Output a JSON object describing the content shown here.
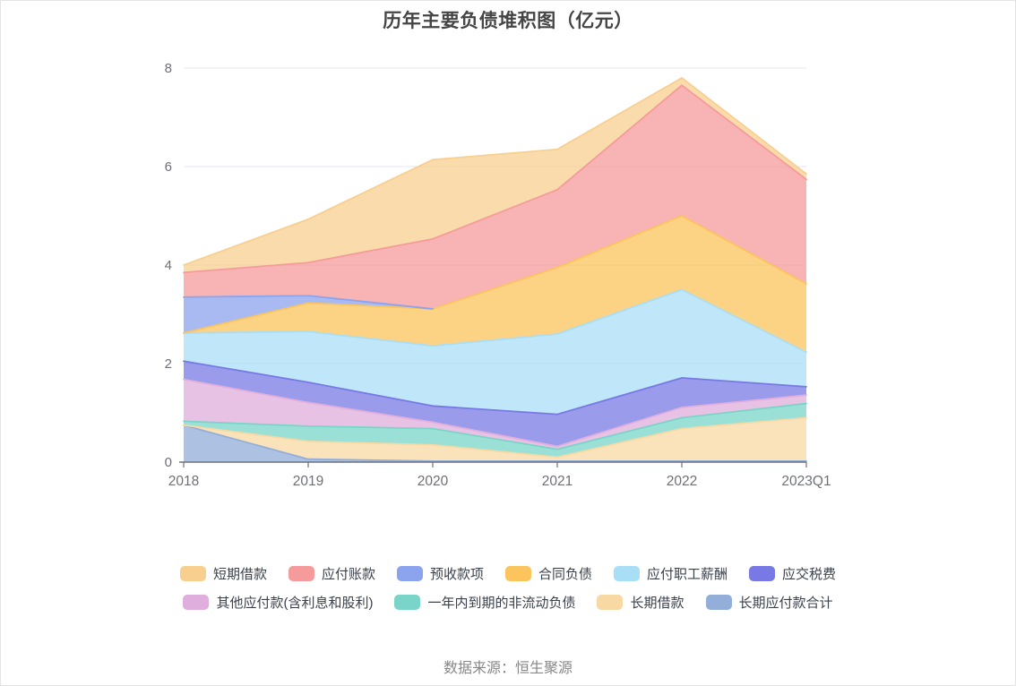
{
  "page": {
    "title": "历年主要负债堆积图（亿元）",
    "source": "数据来源：恒生聚源"
  },
  "chart_data": {
    "type": "area",
    "stacked": true,
    "title": "历年主要负债堆积图（亿元）",
    "unit": "亿元",
    "categories": [
      "2018",
      "2019",
      "2020",
      "2021",
      "2022",
      "2023Q1"
    ],
    "series": [
      {
        "name": "短期借款",
        "color": "#F8CF8F",
        "values": [
          0.15,
          0.88,
          1.61,
          0.82,
          0.15,
          0.11
        ]
      },
      {
        "name": "应付账款",
        "color": "#F59B9B",
        "values": [
          0.5,
          0.67,
          1.42,
          1.58,
          2.65,
          2.12
        ]
      },
      {
        "name": "预收款项",
        "color": "#8CA3EE",
        "values": [
          0.73,
          0.15,
          0.0,
          0.0,
          0.0,
          0.0
        ]
      },
      {
        "name": "合同负债",
        "color": "#FBC45C",
        "values": [
          0.0,
          0.58,
          0.75,
          1.35,
          1.5,
          1.39
        ]
      },
      {
        "name": "应付职工薪酬",
        "color": "#A9DEF7",
        "values": [
          0.57,
          1.03,
          1.22,
          1.63,
          1.79,
          0.7
        ]
      },
      {
        "name": "应交税费",
        "color": "#7879E4",
        "values": [
          0.37,
          0.41,
          0.33,
          0.65,
          0.6,
          0.17
        ]
      },
      {
        "name": "其他应付款(含利息和股利)",
        "color": "#E0AEDC",
        "values": [
          0.85,
          0.48,
          0.13,
          0.06,
          0.21,
          0.17
        ]
      },
      {
        "name": "一年内到期的非流动负债",
        "color": "#7AD5C8",
        "values": [
          0.08,
          0.31,
          0.33,
          0.16,
          0.22,
          0.29
        ]
      },
      {
        "name": "长期借款",
        "color": "#F8D8A3",
        "values": [
          0.0,
          0.36,
          0.33,
          0.08,
          0.66,
          0.88
        ]
      },
      {
        "name": "长期应付款合计",
        "color": "#92AED9",
        "values": [
          0.75,
          0.06,
          0.02,
          0.02,
          0.02,
          0.02
        ]
      }
    ],
    "stack_order": "series are listed top-to-bottom as in legend; the last series is the bottom layer of the stack",
    "totals": [
      4.0,
      4.93,
      6.14,
      6.35,
      7.8,
      5.85
    ],
    "ylim": [
      0,
      8
    ],
    "yticks": [
      0,
      2,
      4,
      6,
      8
    ],
    "grid": true,
    "legend_position": "bottom",
    "legend_rows": [
      6,
      4
    ],
    "source": "数据来源：恒生聚源",
    "colors_meta": {
      "axis_label": "#6E7079",
      "axis_line": "#6E7079",
      "gridline": "#E3E7F1",
      "fill_opacity": 0.75
    }
  }
}
